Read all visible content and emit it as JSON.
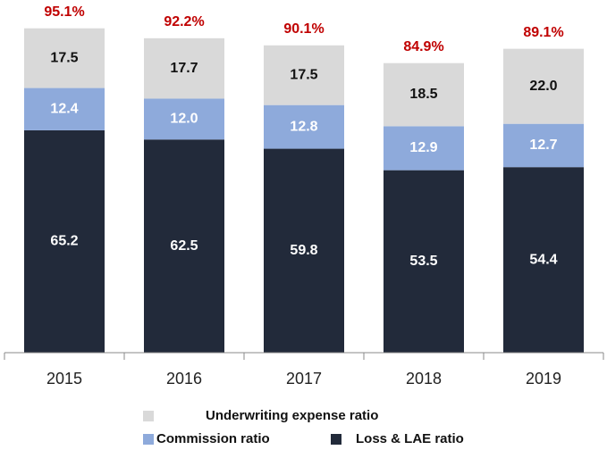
{
  "chart_data": {
    "type": "stacked_bar",
    "categories": [
      "2015",
      "2016",
      "2017",
      "2018",
      "2019"
    ],
    "ylim": [
      0,
      100
    ],
    "series": [
      {
        "name": "Loss & LAE ratio",
        "color": "#222a3a",
        "label_color": "#ffffff",
        "values": [
          65.2,
          62.5,
          59.8,
          53.5,
          54.4
        ],
        "value_labels": [
          "65.2",
          "62.5",
          "59.8",
          "53.5",
          "54.4"
        ]
      },
      {
        "name": "Commission ratio",
        "color": "#8eaadb",
        "label_color": "#ffffff",
        "values": [
          12.4,
          12.0,
          12.8,
          12.9,
          12.7
        ],
        "value_labels": [
          "12.4",
          "12.0",
          "12.8",
          "12.9",
          "12.7"
        ]
      },
      {
        "name": "Underwriting expense ratio",
        "color": "#d9d9d9",
        "label_color": "#111111",
        "values": [
          17.5,
          17.7,
          17.5,
          18.5,
          22.0
        ],
        "value_labels": [
          "17.5",
          "17.7",
          "17.5",
          "18.5",
          "22.0"
        ]
      }
    ],
    "totals": {
      "values": [
        95.1,
        92.2,
        90.1,
        84.9,
        89.1
      ],
      "value_labels": [
        "95.1%",
        "92.2%",
        "90.1%",
        "84.9%",
        "89.1%"
      ]
    }
  }
}
